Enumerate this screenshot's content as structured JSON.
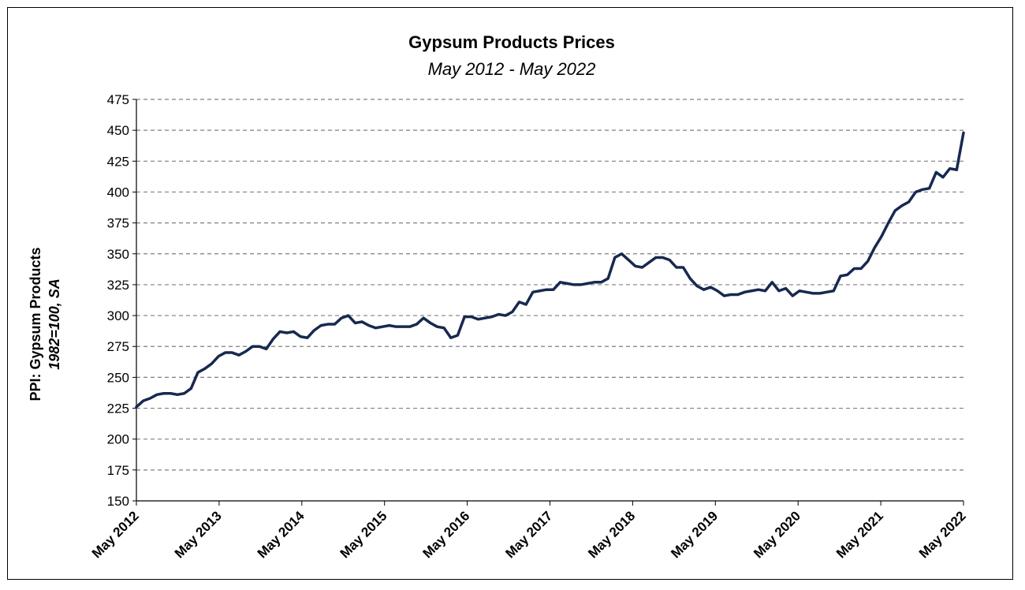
{
  "chart_data": {
    "type": "line",
    "title": "Gypsum Products Prices",
    "subtitle": "May 2012 - May 2022",
    "ylabel": "PPI: Gypsum Products",
    "ylabel_sub": "1982=100, SA",
    "xlabel": "",
    "ylim": [
      150,
      475
    ],
    "yticks": [
      150,
      175,
      200,
      225,
      250,
      275,
      300,
      325,
      350,
      375,
      400,
      425,
      450,
      475
    ],
    "xticks": [
      "May 2012",
      "May 2013",
      "May 2014",
      "May 2015",
      "May 2016",
      "May 2017",
      "May 2018",
      "May 2019",
      "May 2020",
      "May 2021",
      "May 2022"
    ],
    "grid": "horizontal-dashed",
    "line_color": "#17294f",
    "series": [
      {
        "values": [
          226,
          231,
          233,
          236,
          237,
          237,
          236,
          237,
          241,
          254,
          257,
          261,
          267,
          270,
          270,
          268,
          271,
          275,
          275,
          273,
          281,
          287,
          286,
          287,
          283,
          282,
          288,
          292,
          293,
          293,
          298,
          300,
          294,
          295,
          292,
          290,
          291,
          292,
          291,
          291,
          291,
          293,
          298,
          294,
          291,
          290,
          282,
          284,
          299,
          299,
          297,
          298,
          299,
          301,
          300,
          303,
          311,
          309,
          319,
          320,
          321,
          321,
          327,
          326,
          325,
          325,
          326,
          327,
          327,
          330,
          347,
          350,
          345,
          340,
          339,
          343,
          347,
          347,
          345,
          339,
          339,
          330,
          324,
          321,
          323,
          320,
          316,
          317,
          317,
          319,
          320,
          321,
          320,
          327,
          320,
          322,
          316,
          320,
          319,
          318,
          318,
          319,
          320,
          332,
          333,
          338,
          338,
          344,
          355,
          364,
          375,
          385,
          389,
          392,
          400,
          402,
          403,
          416,
          412,
          419,
          418,
          448
        ]
      }
    ]
  }
}
